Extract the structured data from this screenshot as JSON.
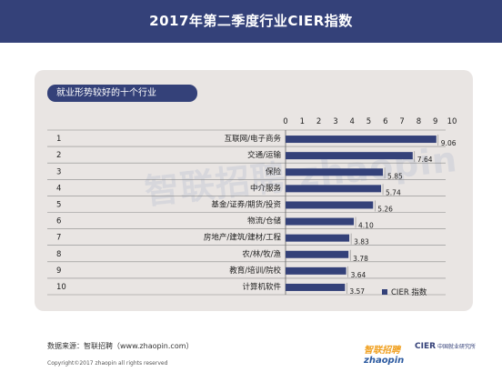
{
  "header": {
    "title": "2017年第二季度行业CIER指数"
  },
  "chart_data": {
    "type": "bar",
    "orientation": "horizontal",
    "title": "就业形势较好的十个行业",
    "xlim": [
      0,
      10
    ],
    "x_ticks": [
      "0",
      "1",
      "2",
      "3",
      "4",
      "5",
      "6",
      "7",
      "8",
      "9",
      "10"
    ],
    "ranks": [
      "1",
      "2",
      "3",
      "4",
      "5",
      "6",
      "7",
      "8",
      "9",
      "10"
    ],
    "categories": [
      "互联网/电子商务",
      "交通/运输",
      "保险",
      "中介服务",
      "基金/证券/期货/投资",
      "物流/仓储",
      "房地产/建筑/建材/工程",
      "农/林/牧/渔",
      "教育/培训/院校",
      "计算机软件"
    ],
    "series": [
      {
        "name": "CIER 指数",
        "values": [
          9.06,
          7.64,
          5.85,
          5.74,
          5.26,
          4.1,
          3.83,
          3.78,
          3.64,
          3.57
        ]
      }
    ],
    "data_labels": [
      "9.06",
      "7.64",
      "5.85",
      "5.74",
      "5.26",
      "4.10",
      "3.83",
      "3.78",
      "3.64",
      "3.57"
    ],
    "bar_color": "#344179",
    "grid": false,
    "legend_position": "bottom-right"
  },
  "watermark": "智联招聘 zhaopin",
  "footer": {
    "source": "数据来源：智联招聘（www.zhaopin.com）",
    "copyright": "Copyright©2017 zhaopin all rights reserved",
    "logo_left_main": "zhaopin",
    "logo_left_cn": "智联招聘",
    "logo_right_main": "CIER",
    "logo_right_sub": "中国就业研究所"
  }
}
